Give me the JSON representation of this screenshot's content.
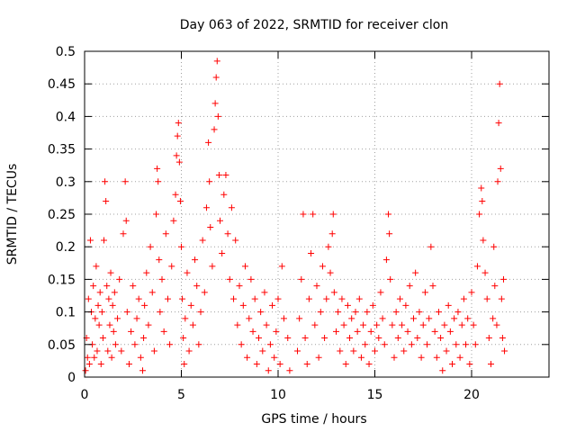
{
  "chart_data": {
    "type": "scatter",
    "title": "Day 063 of 2022, SRMTID for receiver clon",
    "xlabel": "GPS time / hours",
    "ylabel": "SRMTID / TECUs",
    "xlim": [
      0,
      24
    ],
    "ylim": [
      0,
      0.5
    ],
    "xticks": [
      "0",
      "5",
      "10",
      "15",
      "20"
    ],
    "yticks": [
      "0",
      "0.05",
      "0.1",
      "0.15",
      "0.2",
      "0.25",
      "0.3",
      "0.35",
      "0.4",
      "0.45",
      "0.5"
    ],
    "grid": true,
    "marker": "+",
    "color": "#ff0000",
    "series": [
      {
        "points": [
          [
            0.05,
            0.01
          ],
          [
            0.1,
            0.06
          ],
          [
            0.15,
            0.03
          ],
          [
            0.2,
            0.12
          ],
          [
            0.25,
            0.02
          ],
          [
            0.3,
            0.21
          ],
          [
            0.35,
            0.1
          ],
          [
            0.4,
            0.05
          ],
          [
            0.45,
            0.14
          ],
          [
            0.5,
            0.03
          ],
          [
            0.55,
            0.09
          ],
          [
            0.6,
            0.17
          ],
          [
            0.65,
            0.04
          ],
          [
            0.7,
            0.11
          ],
          [
            0.75,
            0.08
          ],
          [
            0.8,
            0.13
          ],
          [
            0.85,
            0.02
          ],
          [
            0.9,
            0.1
          ],
          [
            0.95,
            0.06
          ],
          [
            1.0,
            0.21
          ],
          [
            1.05,
            0.3
          ],
          [
            1.1,
            0.27
          ],
          [
            1.15,
            0.14
          ],
          [
            1.2,
            0.04
          ],
          [
            1.25,
            0.12
          ],
          [
            1.3,
            0.08
          ],
          [
            1.35,
            0.16
          ],
          [
            1.4,
            0.03
          ],
          [
            1.45,
            0.11
          ],
          [
            1.5,
            0.07
          ],
          [
            1.55,
            0.13
          ],
          [
            1.6,
            0.05
          ],
          [
            1.7,
            0.09
          ],
          [
            1.8,
            0.15
          ],
          [
            1.9,
            0.04
          ],
          [
            2.0,
            0.22
          ],
          [
            2.1,
            0.3
          ],
          [
            2.15,
            0.24
          ],
          [
            2.2,
            0.1
          ],
          [
            2.3,
            0.02
          ],
          [
            2.4,
            0.07
          ],
          [
            2.5,
            0.14
          ],
          [
            2.6,
            0.05
          ],
          [
            2.7,
            0.09
          ],
          [
            2.8,
            0.12
          ],
          [
            2.9,
            0.03
          ],
          [
            3.0,
            0.01
          ],
          [
            3.05,
            0.06
          ],
          [
            3.1,
            0.11
          ],
          [
            3.2,
            0.16
          ],
          [
            3.3,
            0.08
          ],
          [
            3.4,
            0.2
          ],
          [
            3.5,
            0.13
          ],
          [
            3.6,
            0.04
          ],
          [
            3.7,
            0.25
          ],
          [
            3.75,
            0.32
          ],
          [
            3.8,
            0.3
          ],
          [
            3.85,
            0.18
          ],
          [
            3.9,
            0.1
          ],
          [
            4.0,
            0.15
          ],
          [
            4.1,
            0.07
          ],
          [
            4.2,
            0.22
          ],
          [
            4.3,
            0.12
          ],
          [
            4.4,
            0.05
          ],
          [
            4.5,
            0.17
          ],
          [
            4.6,
            0.24
          ],
          [
            4.7,
            0.28
          ],
          [
            4.75,
            0.34
          ],
          [
            4.8,
            0.37
          ],
          [
            4.85,
            0.39
          ],
          [
            4.9,
            0.33
          ],
          [
            4.95,
            0.27
          ],
          [
            5.0,
            0.2
          ],
          [
            5.05,
            0.12
          ],
          [
            5.1,
            0.06
          ],
          [
            5.15,
            0.02
          ],
          [
            5.2,
            0.09
          ],
          [
            5.3,
            0.16
          ],
          [
            5.4,
            0.04
          ],
          [
            5.5,
            0.11
          ],
          [
            5.6,
            0.08
          ],
          [
            5.7,
            0.18
          ],
          [
            5.8,
            0.14
          ],
          [
            5.9,
            0.05
          ],
          [
            6.0,
            0.1
          ],
          [
            6.1,
            0.21
          ],
          [
            6.2,
            0.13
          ],
          [
            6.3,
            0.26
          ],
          [
            6.4,
            0.36
          ],
          [
            6.45,
            0.3
          ],
          [
            6.5,
            0.23
          ],
          [
            6.6,
            0.17
          ],
          [
            6.7,
            0.38
          ],
          [
            6.75,
            0.42
          ],
          [
            6.8,
            0.46
          ],
          [
            6.85,
            0.485
          ],
          [
            6.9,
            0.4
          ],
          [
            6.95,
            0.31
          ],
          [
            7.0,
            0.24
          ],
          [
            7.1,
            0.19
          ],
          [
            7.2,
            0.28
          ],
          [
            7.3,
            0.31
          ],
          [
            7.4,
            0.22
          ],
          [
            7.5,
            0.15
          ],
          [
            7.6,
            0.26
          ],
          [
            7.7,
            0.12
          ],
          [
            7.8,
            0.21
          ],
          [
            7.9,
            0.08
          ],
          [
            8.0,
            0.14
          ],
          [
            8.1,
            0.05
          ],
          [
            8.2,
            0.11
          ],
          [
            8.3,
            0.17
          ],
          [
            8.4,
            0.03
          ],
          [
            8.5,
            0.09
          ],
          [
            8.6,
            0.15
          ],
          [
            8.7,
            0.07
          ],
          [
            8.8,
            0.12
          ],
          [
            8.9,
            0.02
          ],
          [
            9.0,
            0.06
          ],
          [
            9.1,
            0.1
          ],
          [
            9.2,
            0.04
          ],
          [
            9.3,
            0.13
          ],
          [
            9.4,
            0.08
          ],
          [
            9.5,
            0.01
          ],
          [
            9.6,
            0.05
          ],
          [
            9.7,
            0.11
          ],
          [
            9.8,
            0.03
          ],
          [
            9.9,
            0.07
          ],
          [
            10.0,
            0.12
          ],
          [
            10.1,
            0.02
          ],
          [
            10.2,
            0.17
          ],
          [
            10.3,
            0.09
          ],
          [
            10.5,
            0.06
          ],
          [
            10.6,
            0.01
          ],
          [
            11.0,
            0.04
          ],
          [
            11.1,
            0.09
          ],
          [
            11.2,
            0.15
          ],
          [
            11.3,
            0.25
          ],
          [
            11.4,
            0.06
          ],
          [
            11.5,
            0.02
          ],
          [
            11.6,
            0.12
          ],
          [
            11.7,
            0.19
          ],
          [
            11.8,
            0.25
          ],
          [
            11.9,
            0.08
          ],
          [
            12.0,
            0.14
          ],
          [
            12.1,
            0.03
          ],
          [
            12.2,
            0.1
          ],
          [
            12.3,
            0.17
          ],
          [
            12.4,
            0.06
          ],
          [
            12.5,
            0.12
          ],
          [
            12.6,
            0.2
          ],
          [
            12.7,
            0.16
          ],
          [
            12.8,
            0.22
          ],
          [
            12.85,
            0.25
          ],
          [
            12.9,
            0.13
          ],
          [
            13.0,
            0.07
          ],
          [
            13.1,
            0.1
          ],
          [
            13.2,
            0.04
          ],
          [
            13.3,
            0.12
          ],
          [
            13.4,
            0.08
          ],
          [
            13.5,
            0.02
          ],
          [
            13.6,
            0.11
          ],
          [
            13.7,
            0.06
          ],
          [
            13.8,
            0.09
          ],
          [
            13.9,
            0.04
          ],
          [
            14.0,
            0.1
          ],
          [
            14.1,
            0.07
          ],
          [
            14.2,
            0.12
          ],
          [
            14.3,
            0.03
          ],
          [
            14.4,
            0.08
          ],
          [
            14.5,
            0.05
          ],
          [
            14.6,
            0.1
          ],
          [
            14.7,
            0.02
          ],
          [
            14.8,
            0.07
          ],
          [
            14.9,
            0.11
          ],
          [
            15.0,
            0.04
          ],
          [
            15.1,
            0.08
          ],
          [
            15.2,
            0.06
          ],
          [
            15.3,
            0.13
          ],
          [
            15.4,
            0.09
          ],
          [
            15.5,
            0.05
          ],
          [
            15.6,
            0.18
          ],
          [
            15.7,
            0.25
          ],
          [
            15.75,
            0.22
          ],
          [
            15.8,
            0.15
          ],
          [
            15.9,
            0.08
          ],
          [
            16.0,
            0.03
          ],
          [
            16.1,
            0.1
          ],
          [
            16.2,
            0.06
          ],
          [
            16.3,
            0.12
          ],
          [
            16.4,
            0.08
          ],
          [
            16.5,
            0.04
          ],
          [
            16.6,
            0.11
          ],
          [
            16.7,
            0.07
          ],
          [
            16.8,
            0.14
          ],
          [
            16.9,
            0.05
          ],
          [
            17.0,
            0.09
          ],
          [
            17.1,
            0.16
          ],
          [
            17.2,
            0.06
          ],
          [
            17.3,
            0.1
          ],
          [
            17.4,
            0.03
          ],
          [
            17.5,
            0.08
          ],
          [
            17.6,
            0.13
          ],
          [
            17.7,
            0.05
          ],
          [
            17.8,
            0.09
          ],
          [
            17.9,
            0.2
          ],
          [
            18.0,
            0.14
          ],
          [
            18.1,
            0.07
          ],
          [
            18.2,
            0.03
          ],
          [
            18.3,
            0.1
          ],
          [
            18.4,
            0.06
          ],
          [
            18.5,
            0.01
          ],
          [
            18.6,
            0.08
          ],
          [
            18.7,
            0.04
          ],
          [
            18.8,
            0.11
          ],
          [
            18.9,
            0.07
          ],
          [
            19.0,
            0.02
          ],
          [
            19.1,
            0.09
          ],
          [
            19.2,
            0.05
          ],
          [
            19.3,
            0.1
          ],
          [
            19.4,
            0.03
          ],
          [
            19.5,
            0.08
          ],
          [
            19.6,
            0.12
          ],
          [
            19.7,
            0.05
          ],
          [
            19.8,
            0.09
          ],
          [
            19.9,
            0.02
          ],
          [
            20.0,
            0.13
          ],
          [
            20.1,
            0.08
          ],
          [
            20.2,
            0.05
          ],
          [
            20.3,
            0.17
          ],
          [
            20.4,
            0.25
          ],
          [
            20.5,
            0.29
          ],
          [
            20.55,
            0.27
          ],
          [
            20.6,
            0.21
          ],
          [
            20.7,
            0.16
          ],
          [
            20.8,
            0.12
          ],
          [
            20.9,
            0.06
          ],
          [
            21.0,
            0.02
          ],
          [
            21.1,
            0.09
          ],
          [
            21.15,
            0.2
          ],
          [
            21.2,
            0.14
          ],
          [
            21.3,
            0.08
          ],
          [
            21.35,
            0.3
          ],
          [
            21.4,
            0.39
          ],
          [
            21.45,
            0.45
          ],
          [
            21.5,
            0.32
          ],
          [
            21.55,
            0.12
          ],
          [
            21.6,
            0.06
          ],
          [
            21.65,
            0.15
          ],
          [
            21.7,
            0.04
          ]
        ]
      }
    ]
  }
}
